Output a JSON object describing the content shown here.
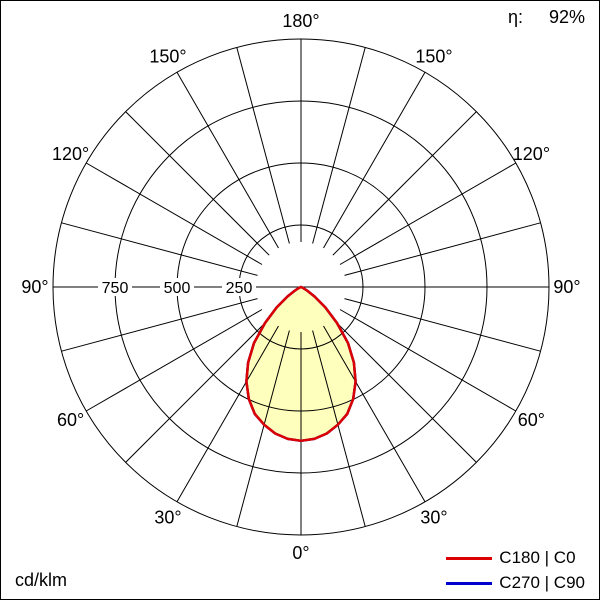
{
  "meta": {
    "efficiency_label": "η:",
    "efficiency_value": "92%",
    "unit_label": "cd/klm"
  },
  "legend": [
    {
      "label": "C180 | C0",
      "color": "#dd0000"
    },
    {
      "label": "C270 | C90",
      "color": "#0000cc"
    }
  ],
  "chart_data": {
    "type": "polar",
    "subtype": "luminous-intensity-distribution",
    "unit": "cd/klm",
    "efficiency_percent": 92,
    "grid": true,
    "legend_position": "bottom-right",
    "radial_axis": {
      "min": 0,
      "max": 1000,
      "ticks": [
        250,
        500,
        750,
        1000
      ],
      "labeled_ticks": [
        "250",
        "500",
        "750"
      ]
    },
    "angle_grid_step_deg": 15,
    "angle_labels": [
      {
        "gamma": 180,
        "text": "180°"
      },
      {
        "gamma": 150,
        "text": "150°"
      },
      {
        "gamma": -150,
        "text": "150°"
      },
      {
        "gamma": 120,
        "text": "120°"
      },
      {
        "gamma": -120,
        "text": "120°"
      },
      {
        "gamma": 90,
        "text": "90°"
      },
      {
        "gamma": -90,
        "text": "90°"
      },
      {
        "gamma": 60,
        "text": "60°"
      },
      {
        "gamma": -60,
        "text": "60°"
      },
      {
        "gamma": 30,
        "text": "30°"
      },
      {
        "gamma": -30,
        "text": "30°"
      },
      {
        "gamma": 0,
        "text": "0°"
      }
    ],
    "series": [
      {
        "name": "C180 | C0",
        "color": "#dd0000",
        "fill": "#ffffbd",
        "profile_symmetric": true,
        "points": [
          [
            0,
            620
          ],
          [
            5,
            615
          ],
          [
            10,
            600
          ],
          [
            15,
            575
          ],
          [
            20,
            545
          ],
          [
            25,
            498
          ],
          [
            30,
            440
          ],
          [
            35,
            372
          ],
          [
            40,
            295
          ],
          [
            45,
            205
          ],
          [
            50,
            128
          ],
          [
            55,
            66
          ],
          [
            60,
            28
          ],
          [
            65,
            9
          ],
          [
            70,
            0
          ]
        ]
      },
      {
        "name": "C270 | C90",
        "color": "#0000cc",
        "fill": "none",
        "profile_symmetric": true,
        "points": [
          [
            0,
            620
          ],
          [
            5,
            615
          ],
          [
            10,
            600
          ],
          [
            15,
            575
          ],
          [
            20,
            545
          ],
          [
            25,
            498
          ],
          [
            30,
            440
          ],
          [
            35,
            372
          ],
          [
            40,
            295
          ],
          [
            45,
            205
          ],
          [
            50,
            128
          ],
          [
            55,
            66
          ],
          [
            60,
            28
          ],
          [
            65,
            9
          ],
          [
            70,
            0
          ]
        ]
      }
    ]
  }
}
